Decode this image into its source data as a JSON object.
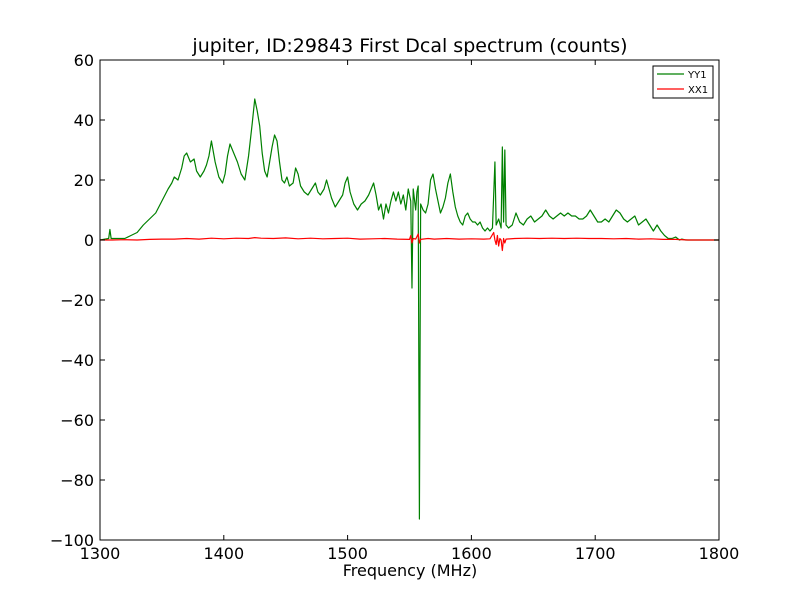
{
  "chart_data": {
    "type": "line",
    "title": "jupiter, ID:29843 First Dcal spectrum (counts)",
    "xlabel": "Frequency (MHz)",
    "ylabel": "",
    "xlim": [
      1300,
      1800
    ],
    "ylim": [
      -100,
      60
    ],
    "xticks": [
      1300,
      1400,
      1500,
      1600,
      1700,
      1800
    ],
    "yticks": [
      -100,
      -80,
      -60,
      -40,
      -20,
      0,
      20,
      40,
      60
    ],
    "xtick_labels": [
      "1300",
      "1400",
      "1500",
      "1600",
      "1700",
      "1800"
    ],
    "ytick_labels": [
      "−100",
      "−80",
      "−60",
      "−40",
      "−20",
      "0",
      "20",
      "40",
      "60"
    ],
    "grid": false,
    "legend": {
      "placement": "top-right"
    },
    "series": [
      {
        "name": "YY1",
        "color": "#008000",
        "points": [
          [
            1300,
            0
          ],
          [
            1307,
            0.5
          ],
          [
            1308,
            3.5
          ],
          [
            1309,
            0.5
          ],
          [
            1320,
            0.5
          ],
          [
            1325,
            1.5
          ],
          [
            1330,
            2.5
          ],
          [
            1335,
            5
          ],
          [
            1340,
            7
          ],
          [
            1345,
            9
          ],
          [
            1350,
            13
          ],
          [
            1355,
            17
          ],
          [
            1358,
            19
          ],
          [
            1360,
            21
          ],
          [
            1363,
            20
          ],
          [
            1366,
            24
          ],
          [
            1368,
            28
          ],
          [
            1370,
            29
          ],
          [
            1373,
            26
          ],
          [
            1376,
            27
          ],
          [
            1378,
            23
          ],
          [
            1381,
            21
          ],
          [
            1384,
            23
          ],
          [
            1386,
            25
          ],
          [
            1388,
            28
          ],
          [
            1390,
            33
          ],
          [
            1393,
            26
          ],
          [
            1396,
            21
          ],
          [
            1399,
            19
          ],
          [
            1401,
            22
          ],
          [
            1403,
            28
          ],
          [
            1405,
            32
          ],
          [
            1408,
            29
          ],
          [
            1411,
            26
          ],
          [
            1414,
            22
          ],
          [
            1417,
            20
          ],
          [
            1420,
            28
          ],
          [
            1423,
            39
          ],
          [
            1425,
            47
          ],
          [
            1427,
            43
          ],
          [
            1429,
            38
          ],
          [
            1431,
            29
          ],
          [
            1433,
            23
          ],
          [
            1435,
            21
          ],
          [
            1437,
            26
          ],
          [
            1439,
            31
          ],
          [
            1441,
            35
          ],
          [
            1443,
            33
          ],
          [
            1445,
            26
          ],
          [
            1447,
            20
          ],
          [
            1449,
            19
          ],
          [
            1451,
            21
          ],
          [
            1453,
            18
          ],
          [
            1456,
            19
          ],
          [
            1458,
            24
          ],
          [
            1460,
            22
          ],
          [
            1462,
            18
          ],
          [
            1465,
            16
          ],
          [
            1468,
            15
          ],
          [
            1471,
            17
          ],
          [
            1474,
            19
          ],
          [
            1476,
            16
          ],
          [
            1478,
            15
          ],
          [
            1481,
            17
          ],
          [
            1483,
            20
          ],
          [
            1485,
            17
          ],
          [
            1487,
            14
          ],
          [
            1490,
            11
          ],
          [
            1493,
            13
          ],
          [
            1496,
            15
          ],
          [
            1498,
            19
          ],
          [
            1500,
            21
          ],
          [
            1502,
            16
          ],
          [
            1505,
            12
          ],
          [
            1508,
            10
          ],
          [
            1511,
            12
          ],
          [
            1514,
            13
          ],
          [
            1517,
            15
          ],
          [
            1519,
            17
          ],
          [
            1521,
            19
          ],
          [
            1523,
            15
          ],
          [
            1525,
            10
          ],
          [
            1527,
            12
          ],
          [
            1529,
            7
          ],
          [
            1531,
            12
          ],
          [
            1533,
            9
          ],
          [
            1535,
            13
          ],
          [
            1537,
            16
          ],
          [
            1539,
            13
          ],
          [
            1541,
            16
          ],
          [
            1543,
            12
          ],
          [
            1545,
            15
          ],
          [
            1547,
            10
          ],
          [
            1549,
            17
          ],
          [
            1551,
            13
          ],
          [
            1552,
            -16
          ],
          [
            1553,
            17
          ],
          [
            1555,
            10
          ],
          [
            1556,
            16
          ],
          [
            1557,
            18
          ],
          [
            1558,
            -93
          ],
          [
            1559,
            12
          ],
          [
            1561,
            10
          ],
          [
            1563,
            9
          ],
          [
            1565,
            12
          ],
          [
            1567,
            20
          ],
          [
            1569,
            22
          ],
          [
            1571,
            17
          ],
          [
            1573,
            13
          ],
          [
            1575,
            9
          ],
          [
            1577,
            11
          ],
          [
            1579,
            14
          ],
          [
            1581,
            19
          ],
          [
            1583,
            22
          ],
          [
            1585,
            16
          ],
          [
            1587,
            11
          ],
          [
            1589,
            8
          ],
          [
            1591,
            6
          ],
          [
            1593,
            5
          ],
          [
            1595,
            8
          ],
          [
            1597,
            9
          ],
          [
            1599,
            7
          ],
          [
            1601,
            6
          ],
          [
            1603,
            6
          ],
          [
            1605,
            5
          ],
          [
            1607,
            6
          ],
          [
            1609,
            4
          ],
          [
            1611,
            3
          ],
          [
            1613,
            4
          ],
          [
            1615,
            3
          ],
          [
            1617,
            4
          ],
          [
            1619,
            26
          ],
          [
            1620,
            5
          ],
          [
            1621,
            6
          ],
          [
            1622,
            7
          ],
          [
            1624,
            4
          ],
          [
            1625,
            31
          ],
          [
            1626,
            6
          ],
          [
            1627,
            30
          ],
          [
            1628,
            5
          ],
          [
            1630,
            4
          ],
          [
            1633,
            5
          ],
          [
            1636,
            9
          ],
          [
            1639,
            6
          ],
          [
            1642,
            5
          ],
          [
            1645,
            7
          ],
          [
            1648,
            8
          ],
          [
            1651,
            6
          ],
          [
            1654,
            7
          ],
          [
            1657,
            8
          ],
          [
            1660,
            10
          ],
          [
            1663,
            8
          ],
          [
            1666,
            7
          ],
          [
            1669,
            8
          ],
          [
            1672,
            9
          ],
          [
            1675,
            8
          ],
          [
            1678,
            9
          ],
          [
            1681,
            8
          ],
          [
            1684,
            8
          ],
          [
            1687,
            7
          ],
          [
            1690,
            7
          ],
          [
            1693,
            8
          ],
          [
            1696,
            10
          ],
          [
            1699,
            8
          ],
          [
            1702,
            6
          ],
          [
            1705,
            6
          ],
          [
            1708,
            7
          ],
          [
            1711,
            6
          ],
          [
            1714,
            8
          ],
          [
            1717,
            10
          ],
          [
            1720,
            9
          ],
          [
            1723,
            7
          ],
          [
            1726,
            6
          ],
          [
            1729,
            7
          ],
          [
            1732,
            8
          ],
          [
            1735,
            5
          ],
          [
            1738,
            6
          ],
          [
            1741,
            7
          ],
          [
            1744,
            5
          ],
          [
            1747,
            3
          ],
          [
            1750,
            5
          ],
          [
            1753,
            3
          ],
          [
            1756,
            1.5
          ],
          [
            1759,
            0.5
          ],
          [
            1762,
            0.5
          ],
          [
            1765,
            1
          ],
          [
            1768,
            0
          ],
          [
            1770,
            0.3
          ],
          [
            1773,
            0
          ],
          [
            1800,
            0
          ]
        ]
      },
      {
        "name": "XX1",
        "color": "#ff0000",
        "points": [
          [
            1300,
            0
          ],
          [
            1310,
            0
          ],
          [
            1320,
            0.1
          ],
          [
            1330,
            0
          ],
          [
            1340,
            0.2
          ],
          [
            1350,
            0.3
          ],
          [
            1360,
            0.3
          ],
          [
            1370,
            0.5
          ],
          [
            1380,
            0.3
          ],
          [
            1390,
            0.6
          ],
          [
            1400,
            0.4
          ],
          [
            1410,
            0.6
          ],
          [
            1420,
            0.5
          ],
          [
            1425,
            0.8
          ],
          [
            1430,
            0.6
          ],
          [
            1440,
            0.5
          ],
          [
            1450,
            0.7
          ],
          [
            1460,
            0.4
          ],
          [
            1470,
            0.6
          ],
          [
            1480,
            0.4
          ],
          [
            1490,
            0.5
          ],
          [
            1500,
            0.6
          ],
          [
            1510,
            0.3
          ],
          [
            1520,
            0.4
          ],
          [
            1530,
            0.5
          ],
          [
            1540,
            0.3
          ],
          [
            1550,
            0.2
          ],
          [
            1551,
            1.5
          ],
          [
            1552,
            -1
          ],
          [
            1553,
            0.5
          ],
          [
            1555,
            0.3
          ],
          [
            1557,
            2
          ],
          [
            1558,
            -1
          ],
          [
            1559,
            0.2
          ],
          [
            1565,
            0.5
          ],
          [
            1570,
            0.3
          ],
          [
            1580,
            0.5
          ],
          [
            1590,
            0.3
          ],
          [
            1600,
            0.4
          ],
          [
            1610,
            0.3
          ],
          [
            1615,
            0.4
          ],
          [
            1618,
            2.5
          ],
          [
            1619,
            0
          ],
          [
            1620,
            -1.5
          ],
          [
            1621,
            1.5
          ],
          [
            1622,
            -2
          ],
          [
            1623,
            0.5
          ],
          [
            1624,
            0
          ],
          [
            1625,
            -3.5
          ],
          [
            1626,
            0.5
          ],
          [
            1627,
            -1
          ],
          [
            1628,
            0.3
          ],
          [
            1635,
            0.5
          ],
          [
            1645,
            0.6
          ],
          [
            1655,
            0.5
          ],
          [
            1665,
            0.6
          ],
          [
            1675,
            0.5
          ],
          [
            1685,
            0.6
          ],
          [
            1695,
            0.5
          ],
          [
            1705,
            0.5
          ],
          [
            1715,
            0.4
          ],
          [
            1725,
            0.5
          ],
          [
            1735,
            0.3
          ],
          [
            1745,
            0.4
          ],
          [
            1755,
            0.2
          ],
          [
            1765,
            0.2
          ],
          [
            1775,
            0
          ],
          [
            1800,
            0
          ]
        ]
      }
    ]
  }
}
